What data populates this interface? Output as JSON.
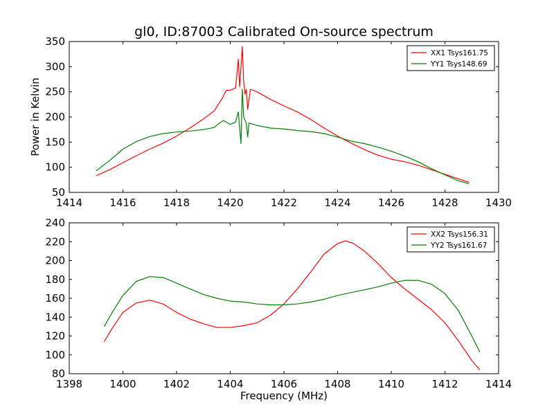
{
  "title": "gl0, ID:87003 Calibrated On-source spectrum",
  "chart_data": [
    {
      "type": "line",
      "ylabel": "Power in Kelvin",
      "xlabel": "",
      "xlim": [
        1414,
        1430
      ],
      "ylim": [
        50,
        350
      ],
      "xticks": [
        1414,
        1416,
        1418,
        1420,
        1422,
        1424,
        1426,
        1428,
        1430
      ],
      "yticks": [
        50,
        100,
        150,
        200,
        250,
        300,
        350
      ],
      "legend_position": "top-right",
      "series": [
        {
          "name": "XX1 Tsys161.75",
          "color": "#ff0000",
          "points": [
            [
              1415.0,
              83
            ],
            [
              1415.5,
              95
            ],
            [
              1416.0,
              109
            ],
            [
              1416.5,
              123
            ],
            [
              1417.0,
              136
            ],
            [
              1417.5,
              148
            ],
            [
              1418.0,
              162
            ],
            [
              1418.5,
              178
            ],
            [
              1419.0,
              196
            ],
            [
              1419.4,
              212
            ],
            [
              1419.7,
              237
            ],
            [
              1419.85,
              253
            ],
            [
              1420.0,
              253
            ],
            [
              1420.2,
              258
            ],
            [
              1420.3,
              315
            ],
            [
              1420.35,
              260
            ],
            [
              1420.45,
              340
            ],
            [
              1420.5,
              270
            ],
            [
              1420.55,
              245
            ],
            [
              1420.6,
              255
            ],
            [
              1420.65,
              215
            ],
            [
              1420.75,
              255
            ],
            [
              1421.0,
              250
            ],
            [
              1421.5,
              235
            ],
            [
              1422.0,
              222
            ],
            [
              1422.5,
              210
            ],
            [
              1423.0,
              195
            ],
            [
              1423.5,
              178
            ],
            [
              1424.0,
              162
            ],
            [
              1424.5,
              148
            ],
            [
              1425.0,
              135
            ],
            [
              1425.5,
              124
            ],
            [
              1426.0,
              116
            ],
            [
              1426.5,
              111
            ],
            [
              1427.0,
              104
            ],
            [
              1427.5,
              95
            ],
            [
              1428.0,
              86
            ],
            [
              1428.5,
              77
            ],
            [
              1428.9,
              70
            ]
          ]
        },
        {
          "name": "YY1 Tsys148.69",
          "color": "#007f00",
          "points": [
            [
              1415.0,
              93
            ],
            [
              1415.5,
              113
            ],
            [
              1416.0,
              136
            ],
            [
              1416.5,
              151
            ],
            [
              1417.0,
              161
            ],
            [
              1417.5,
              167
            ],
            [
              1418.0,
              170
            ],
            [
              1418.5,
              172
            ],
            [
              1419.0,
              175
            ],
            [
              1419.4,
              179
            ],
            [
              1419.6,
              188
            ],
            [
              1419.75,
              193
            ],
            [
              1420.0,
              185
            ],
            [
              1420.2,
              190
            ],
            [
              1420.3,
              210
            ],
            [
              1420.4,
              147
            ],
            [
              1420.45,
              255
            ],
            [
              1420.5,
              200
            ],
            [
              1420.6,
              187
            ],
            [
              1420.65,
              160
            ],
            [
              1420.7,
              188
            ],
            [
              1421.0,
              183
            ],
            [
              1421.5,
              178
            ],
            [
              1422.0,
              176
            ],
            [
              1422.5,
              173
            ],
            [
              1423.0,
              171
            ],
            [
              1423.5,
              167
            ],
            [
              1424.0,
              160
            ],
            [
              1424.5,
              152
            ],
            [
              1425.0,
              147
            ],
            [
              1425.5,
              140
            ],
            [
              1426.0,
              132
            ],
            [
              1426.5,
              122
            ],
            [
              1427.0,
              111
            ],
            [
              1427.5,
              97
            ],
            [
              1428.0,
              85
            ],
            [
              1428.5,
              73
            ],
            [
              1428.9,
              67
            ]
          ]
        }
      ]
    },
    {
      "type": "line",
      "ylabel": "",
      "xlabel": "Frequency (MHz)",
      "xlim": [
        1398,
        1414
      ],
      "ylim": [
        80,
        240
      ],
      "xticks": [
        1398,
        1400,
        1402,
        1404,
        1406,
        1408,
        1410,
        1412,
        1414
      ],
      "yticks": [
        80,
        100,
        120,
        140,
        160,
        180,
        200,
        220,
        240
      ],
      "legend_position": "top-right",
      "series": [
        {
          "name": "XX2 Tsys156.31",
          "color": "#ff0000",
          "points": [
            [
              1399.3,
              114
            ],
            [
              1399.6,
              128
            ],
            [
              1400.0,
              145
            ],
            [
              1400.5,
              155
            ],
            [
              1401.0,
              158
            ],
            [
              1401.5,
              154
            ],
            [
              1402.0,
              145
            ],
            [
              1402.5,
              138
            ],
            [
              1403.0,
              133
            ],
            [
              1403.5,
              129
            ],
            [
              1404.0,
              129
            ],
            [
              1404.5,
              131
            ],
            [
              1405.0,
              134
            ],
            [
              1405.5,
              142
            ],
            [
              1406.0,
              154
            ],
            [
              1406.5,
              170
            ],
            [
              1407.0,
              188
            ],
            [
              1407.5,
              207
            ],
            [
              1408.0,
              218
            ],
            [
              1408.3,
              221
            ],
            [
              1408.6,
              218
            ],
            [
              1409.0,
              210
            ],
            [
              1409.5,
              197
            ],
            [
              1410.0,
              182
            ],
            [
              1410.5,
              170
            ],
            [
              1411.0,
              159
            ],
            [
              1411.5,
              148
            ],
            [
              1412.0,
              134
            ],
            [
              1412.5,
              115
            ],
            [
              1413.0,
              94
            ],
            [
              1413.3,
              84
            ]
          ]
        },
        {
          "name": "YY2 Tsys161.67",
          "color": "#007f00",
          "points": [
            [
              1399.3,
              130
            ],
            [
              1399.6,
              145
            ],
            [
              1400.0,
              163
            ],
            [
              1400.5,
              178
            ],
            [
              1401.0,
              183
            ],
            [
              1401.5,
              182
            ],
            [
              1402.0,
              176
            ],
            [
              1402.5,
              170
            ],
            [
              1403.0,
              164
            ],
            [
              1403.5,
              160
            ],
            [
              1404.0,
              157
            ],
            [
              1404.5,
              156
            ],
            [
              1405.0,
              154
            ],
            [
              1405.5,
              153
            ],
            [
              1406.0,
              153
            ],
            [
              1406.5,
              154
            ],
            [
              1407.0,
              156
            ],
            [
              1407.5,
              159
            ],
            [
              1408.0,
              163
            ],
            [
              1408.5,
              166
            ],
            [
              1409.0,
              169
            ],
            [
              1409.5,
              172
            ],
            [
              1410.0,
              176
            ],
            [
              1410.5,
              179
            ],
            [
              1411.0,
              179
            ],
            [
              1411.5,
              175
            ],
            [
              1412.0,
              165
            ],
            [
              1412.5,
              147
            ],
            [
              1413.0,
              120
            ],
            [
              1413.3,
              103
            ]
          ]
        }
      ]
    }
  ]
}
